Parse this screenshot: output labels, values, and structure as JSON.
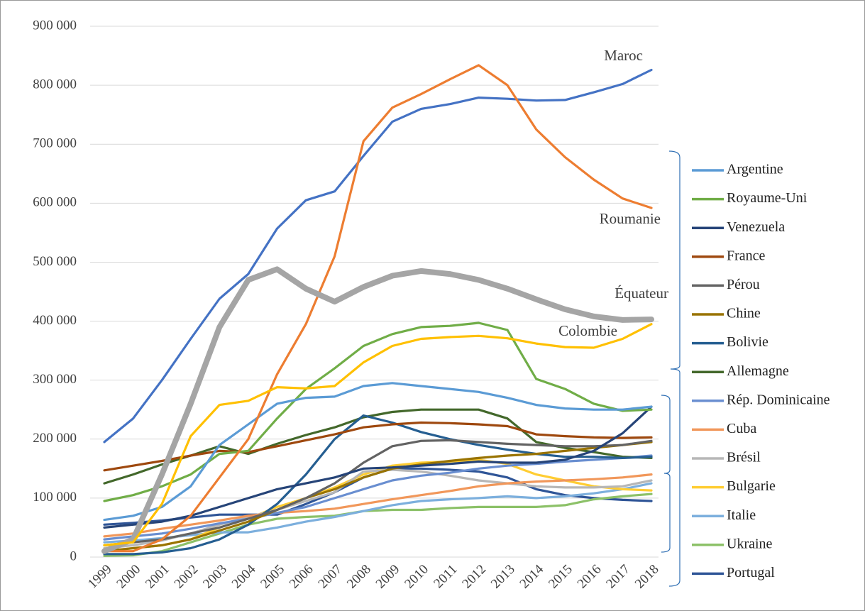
{
  "chart_data": {
    "type": "line",
    "categories": [
      "1999",
      "2000",
      "2001",
      "2002",
      "2003",
      "2004",
      "2005",
      "2006",
      "2007",
      "2008",
      "2009",
      "2010",
      "2011",
      "2012",
      "2013",
      "2014",
      "2015",
      "2016",
      "2017",
      "2018"
    ],
    "ylim": [
      0,
      900000
    ],
    "yticks": [
      0,
      {
        "value": 100000,
        "label": "100 000"
      },
      {
        "value": 200000,
        "label": "200 000"
      },
      {
        "value": 300000,
        "label": "300 000"
      },
      {
        "value": 400000,
        "label": "400 000"
      },
      {
        "value": 500000,
        "label": "500 000"
      },
      {
        "value": 600000,
        "label": "600 000"
      },
      {
        "value": 700000,
        "label": "700 000"
      },
      {
        "value": 800000,
        "label": "800 000"
      },
      {
        "value": 900000,
        "label": "900 000"
      }
    ],
    "grid": true,
    "series": [
      {
        "name": "Maroc",
        "color": "#4472c4",
        "direct_label": true,
        "values": [
          195000,
          235000,
          300000,
          370000,
          438000,
          480000,
          557000,
          605000,
          620000,
          680000,
          738000,
          760000,
          768000,
          779000,
          777000,
          774000,
          775000,
          788000,
          802000,
          826000
        ]
      },
      {
        "name": "Roumanie",
        "color": "#ed7d31",
        "direct_label": true,
        "values": [
          10000,
          10000,
          30000,
          70000,
          135000,
          200000,
          310000,
          395000,
          510000,
          705000,
          762000,
          785000,
          810000,
          834000,
          800000,
          725000,
          678000,
          640000,
          608000,
          592000
        ]
      },
      {
        "name": "Équateur",
        "color": "#a5a5a5",
        "direct_label": true,
        "thick": true,
        "values": [
          10000,
          30000,
          140000,
          260000,
          390000,
          470000,
          488000,
          455000,
          433000,
          458000,
          477000,
          485000,
          480000,
          470000,
          455000,
          437000,
          420000,
          408000,
          402000,
          403000
        ]
      },
      {
        "name": "Colombie",
        "color": "#ffc000",
        "direct_label": true,
        "values": [
          20000,
          25000,
          90000,
          205000,
          258000,
          265000,
          288000,
          286000,
          290000,
          330000,
          358000,
          370000,
          373000,
          375000,
          371000,
          362000,
          356000,
          355000,
          370000,
          395000
        ]
      },
      {
        "name": "Argentine",
        "color": "#5b9bd5",
        "values": [
          63000,
          70000,
          85000,
          120000,
          190000,
          225000,
          260000,
          270000,
          272000,
          290000,
          295000,
          290000,
          285000,
          280000,
          270000,
          258000,
          252000,
          250000,
          250000,
          255000
        ]
      },
      {
        "name": "Royaume-Uni",
        "color": "#70ad47",
        "values": [
          95000,
          105000,
          120000,
          140000,
          175000,
          180000,
          235000,
          285000,
          320000,
          358000,
          378000,
          390000,
          392000,
          397000,
          385000,
          302000,
          285000,
          260000,
          248000,
          250000
        ]
      },
      {
        "name": "Venezuela",
        "color": "#264478",
        "values": [
          50000,
          55000,
          60000,
          70000,
          85000,
          100000,
          115000,
          125000,
          135000,
          150000,
          152000,
          155000,
          158000,
          162000,
          160000,
          160000,
          165000,
          180000,
          210000,
          255000
        ]
      },
      {
        "name": "France",
        "color": "#9e480e",
        "values": [
          147000,
          155000,
          163000,
          172000,
          180000,
          178000,
          188000,
          198000,
          208000,
          220000,
          225000,
          228000,
          227000,
          225000,
          222000,
          208000,
          205000,
          203000,
          202000,
          203000
        ]
      },
      {
        "name": "Pérou",
        "color": "#636363",
        "values": [
          20000,
          25000,
          30000,
          40000,
          50000,
          65000,
          80000,
          100000,
          125000,
          160000,
          188000,
          197000,
          198000,
          195000,
          192000,
          190000,
          188000,
          188000,
          190000,
          197000
        ]
      },
      {
        "name": "Chine",
        "color": "#997300",
        "values": [
          10000,
          15000,
          20000,
          30000,
          45000,
          60000,
          80000,
          100000,
          115000,
          135000,
          150000,
          157000,
          163000,
          168000,
          172000,
          175000,
          180000,
          185000,
          190000,
          195000
        ]
      },
      {
        "name": "Bolivie",
        "color": "#255e91",
        "values": [
          5000,
          5000,
          8000,
          15000,
          30000,
          55000,
          90000,
          140000,
          200000,
          240000,
          228000,
          212000,
          200000,
          190000,
          182000,
          175000,
          170000,
          170000,
          168000,
          170000
        ]
      },
      {
        "name": "Allemagne",
        "color": "#43682b",
        "values": [
          125000,
          140000,
          157000,
          172000,
          188000,
          175000,
          192000,
          207000,
          220000,
          237000,
          246000,
          250000,
          250000,
          250000,
          235000,
          195000,
          185000,
          178000,
          170000,
          168000
        ]
      },
      {
        "name": "Rép. Dominicaine",
        "color": "#698ed0",
        "values": [
          30000,
          35000,
          40000,
          48000,
          57000,
          65000,
          75000,
          85000,
          100000,
          115000,
          130000,
          138000,
          143000,
          150000,
          155000,
          158000,
          162000,
          165000,
          168000,
          172000
        ]
      },
      {
        "name": "Cuba",
        "color": "#f1975a",
        "values": [
          35000,
          40000,
          48000,
          55000,
          62000,
          70000,
          75000,
          78000,
          82000,
          90000,
          98000,
          105000,
          112000,
          120000,
          125000,
          128000,
          130000,
          132000,
          135000,
          140000
        ]
      },
      {
        "name": "Brésil",
        "color": "#b7b7b7",
        "values": [
          15000,
          20000,
          28000,
          40000,
          55000,
          68000,
          80000,
          95000,
          110000,
          145000,
          148000,
          145000,
          138000,
          130000,
          125000,
          120000,
          118000,
          118000,
          120000,
          130000
        ]
      },
      {
        "name": "Bulgarie",
        "color": "#ffcd33",
        "values": [
          10000,
          15000,
          20000,
          30000,
          50000,
          65000,
          85000,
          100000,
          118000,
          140000,
          155000,
          160000,
          162000,
          165000,
          158000,
          140000,
          130000,
          120000,
          115000,
          113000
        ]
      },
      {
        "name": "Italie",
        "color": "#7cafdd",
        "values": [
          25000,
          28000,
          32000,
          37000,
          42000,
          42000,
          50000,
          60000,
          68000,
          78000,
          88000,
          95000,
          98000,
          100000,
          103000,
          100000,
          103000,
          108000,
          115000,
          125000
        ]
      },
      {
        "name": "Ukraine",
        "color": "#8cc168",
        "values": [
          2000,
          3000,
          10000,
          25000,
          40000,
          55000,
          65000,
          68000,
          70000,
          78000,
          80000,
          80000,
          83000,
          85000,
          85000,
          85000,
          88000,
          98000,
          103000,
          107000
        ]
      },
      {
        "name": "Portugal",
        "color": "#2f5597",
        "values": [
          55000,
          58000,
          62000,
          67000,
          72000,
          72000,
          72000,
          90000,
          110000,
          135000,
          150000,
          150000,
          148000,
          145000,
          135000,
          115000,
          105000,
          100000,
          97000,
          95000
        ]
      }
    ]
  }
}
